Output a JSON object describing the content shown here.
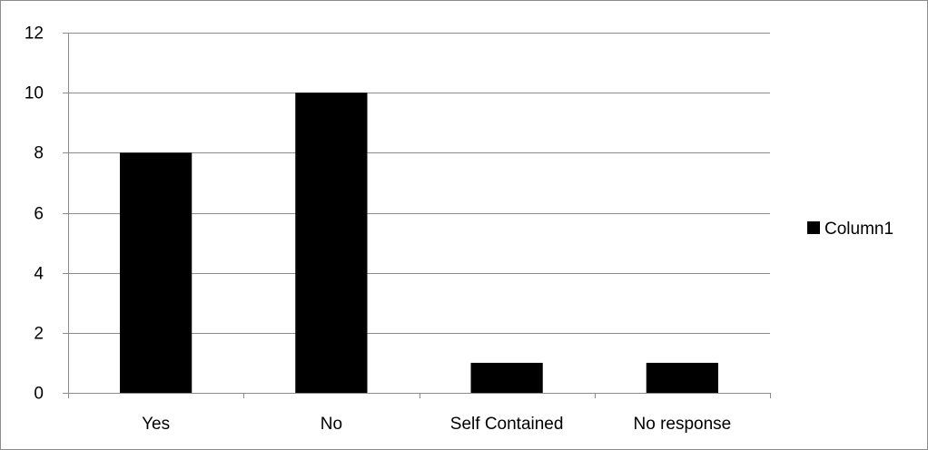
{
  "chart_data": {
    "type": "bar",
    "categories": [
      "Yes",
      "No",
      "Self Contained",
      "No response"
    ],
    "series": [
      {
        "name": "Column1",
        "values": [
          8,
          10,
          1,
          1
        ],
        "color": "#000000"
      }
    ],
    "ylim": [
      0,
      12
    ],
    "yticks": [
      0,
      2,
      4,
      6,
      8,
      10,
      12
    ],
    "grid": true,
    "legend_position": "right",
    "title": "",
    "xlabel": "",
    "ylabel": ""
  }
}
